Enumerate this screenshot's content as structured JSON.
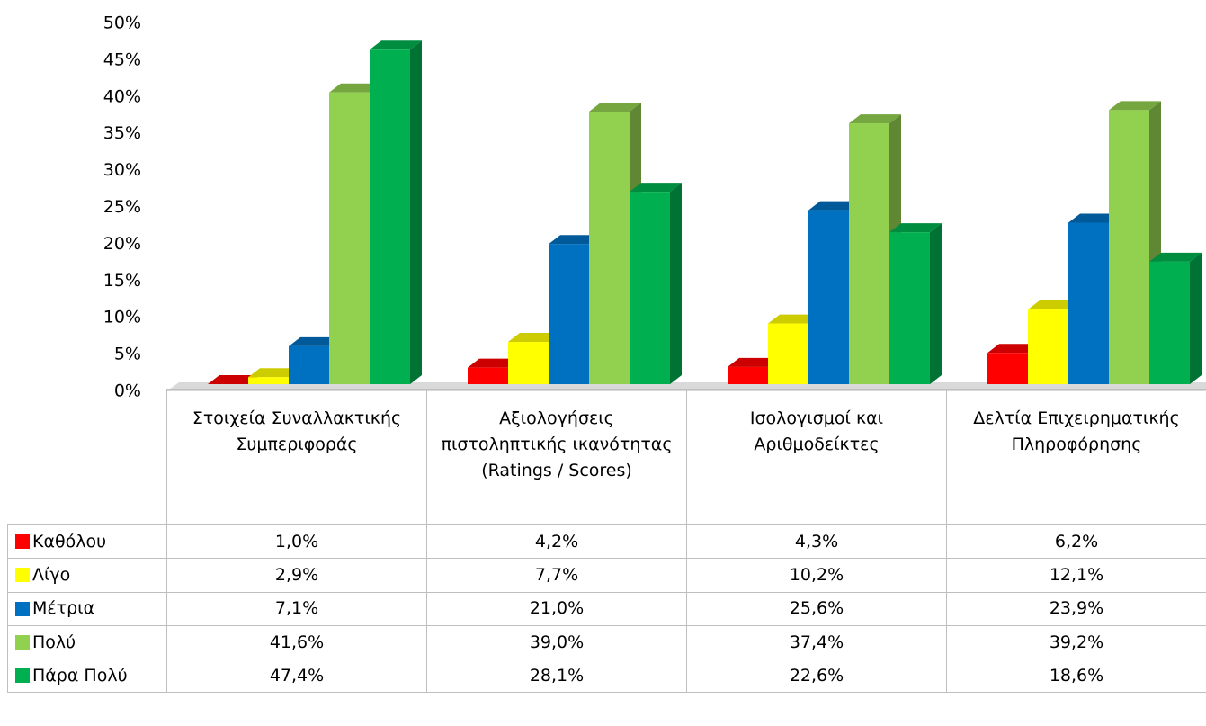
{
  "chart_data": {
    "type": "bar3d",
    "categories": [
      "Στοιχεία Συναλλακτικής Συμπεριφοράς",
      "Αξιολογήσεις πιστοληπτικής ικανότητας (Ratings / Scores)",
      "Ισολογισμοί και Αριθμοδείκτες",
      "Δελτία Επιχειρηματικής Πληροφόρησης"
    ],
    "series": [
      {
        "name": "Καθόλου",
        "color": "#ff0000",
        "values": [
          1.0,
          4.2,
          4.3,
          6.2
        ],
        "value_labels": [
          "1,0%",
          "4,2%",
          "4,3%",
          "6,2%"
        ]
      },
      {
        "name": "Λίγο",
        "color": "#ffff00",
        "values": [
          2.9,
          7.7,
          10.2,
          12.1
        ],
        "value_labels": [
          "2,9%",
          "7,7%",
          "10,2%",
          "12,1%"
        ]
      },
      {
        "name": "Μέτρια",
        "color": "#0070c0",
        "values": [
          7.1,
          21.0,
          25.6,
          23.9
        ],
        "value_labels": [
          "7,1%",
          "21,0%",
          "25,6%",
          "23,9%"
        ]
      },
      {
        "name": "Πολύ",
        "color": "#92d050",
        "values": [
          41.6,
          39.0,
          37.4,
          39.2
        ],
        "value_labels": [
          "41,6%",
          "39,0%",
          "37,4%",
          "39,2%"
        ]
      },
      {
        "name": "Πάρα Πολύ",
        "color": "#00b050",
        "values": [
          47.4,
          28.1,
          22.6,
          18.6
        ],
        "value_labels": [
          "47,4%",
          "28,1%",
          "22,6%",
          "18,6%"
        ]
      }
    ],
    "ylim": [
      0,
      50
    ],
    "yticks": [
      {
        "value": 0,
        "label": "0%"
      },
      {
        "value": 5,
        "label": "5%"
      },
      {
        "value": 10,
        "label": "10%"
      },
      {
        "value": 15,
        "label": "15%"
      },
      {
        "value": 20,
        "label": "20%"
      },
      {
        "value": 25,
        "label": "25%"
      },
      {
        "value": 30,
        "label": "30%"
      },
      {
        "value": 35,
        "label": "35%"
      },
      {
        "value": 40,
        "label": "40%"
      },
      {
        "value": 45,
        "label": "45%"
      },
      {
        "value": 50,
        "label": "50%"
      }
    ],
    "grid": false
  }
}
